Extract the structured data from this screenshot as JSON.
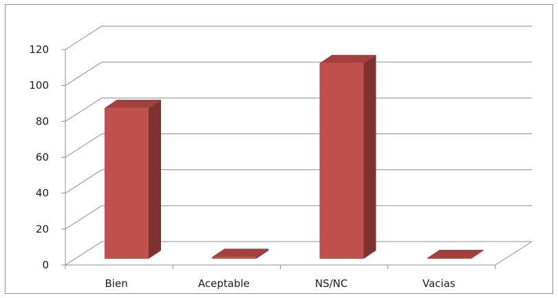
{
  "chart_data": {
    "type": "bar",
    "style": "3d-column",
    "categories": [
      "Bien",
      "Aceptable",
      "NS/NC",
      "Vacias"
    ],
    "values": [
      84,
      1,
      109,
      0
    ],
    "ylim": [
      0,
      120
    ],
    "yticks": [
      0,
      20,
      40,
      60,
      80,
      100,
      120
    ],
    "ytick_labels": [
      "0",
      "20",
      "40",
      "60",
      "80",
      "100",
      "120"
    ],
    "grid": true,
    "legend": "none",
    "colors": {
      "front": "#c0504d",
      "side": "#7f3130",
      "top": "#a43f3c",
      "grid": "#8c8c8c",
      "frame": "#8c8c8c"
    }
  }
}
